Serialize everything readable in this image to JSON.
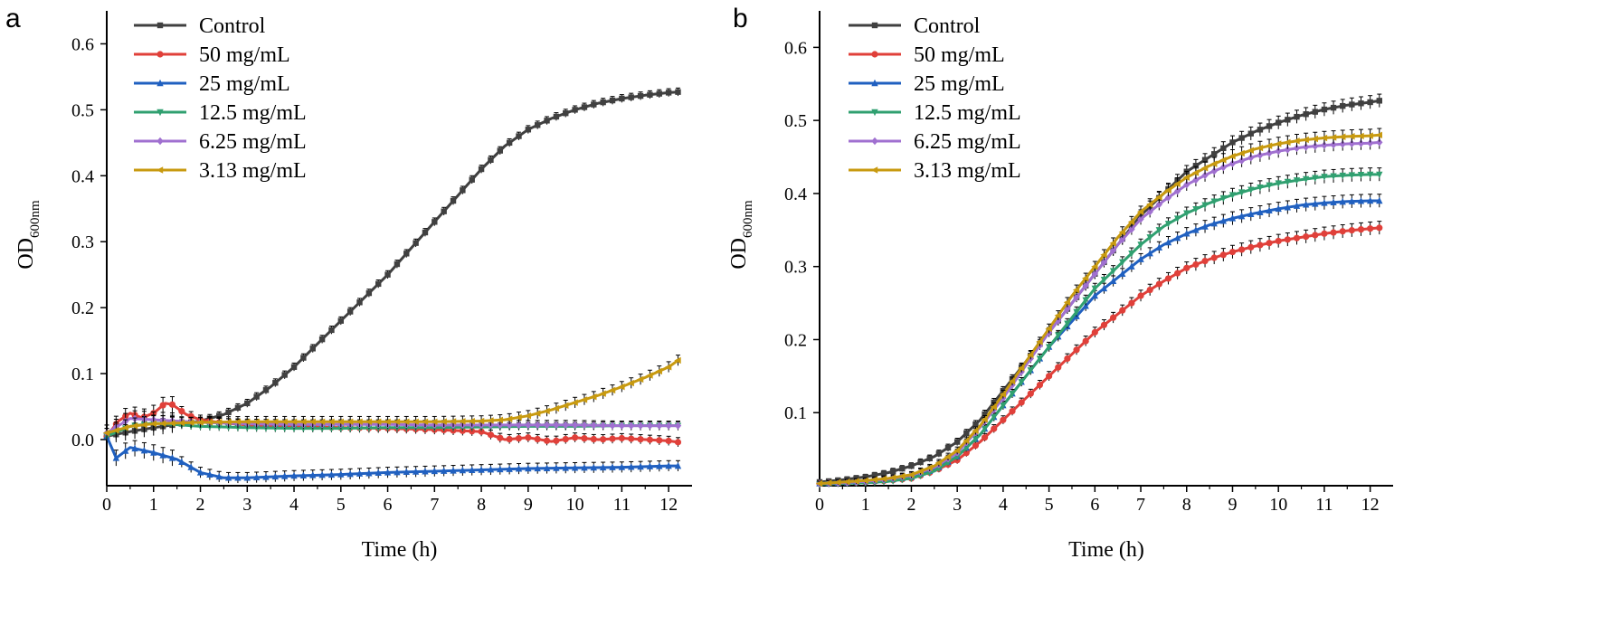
{
  "colors": {
    "Control": "#404040",
    "50 mg/mL": "#e0403a",
    "25 mg/mL": "#2060c0",
    "12.5 mg/mL": "#30a070",
    "6.25 mg/mL": "#a070d0",
    "3.13 mg/mL": "#c89a10"
  },
  "markers": {
    "Control": "square",
    "50 mg/mL": "circle",
    "25 mg/mL": "triangle-up",
    "12.5 mg/mL": "triangle-down",
    "6.25 mg/mL": "diamond",
    "3.13 mg/mL": "triangle-left"
  },
  "chart_data": [
    {
      "panel_label": "a",
      "type": "line",
      "xlabel": "Time (h)",
      "ylabel": "OD",
      "ylabel_sub": "600nm",
      "xlim": [
        0,
        12.5
      ],
      "ylim": [
        -0.07,
        0.65
      ],
      "xticks": [
        "0",
        "1",
        "2",
        "3",
        "4",
        "5",
        "6",
        "7",
        "8",
        "9",
        "10",
        "11",
        "12"
      ],
      "yticks": [
        "0.0",
        "0.1",
        "0.2",
        "0.3",
        "0.4",
        "0.5",
        "0.6"
      ],
      "legend": "top-left",
      "grid": false,
      "error_bars": true,
      "series": [
        {
          "name": "Control",
          "x": [
            0,
            0.5,
            1,
            1.5,
            2,
            2.5,
            3,
            3.5,
            4,
            4.5,
            5,
            5.5,
            6,
            6.5,
            7,
            7.5,
            8,
            8.5,
            9,
            9.5,
            10,
            10.5,
            11,
            11.5,
            12,
            12.2
          ],
          "y": [
            0.005,
            0.012,
            0.018,
            0.023,
            0.028,
            0.038,
            0.055,
            0.08,
            0.11,
            0.145,
            0.18,
            0.215,
            0.25,
            0.29,
            0.33,
            0.37,
            0.41,
            0.445,
            0.47,
            0.487,
            0.5,
            0.51,
            0.517,
            0.522,
            0.526,
            0.527
          ]
        },
        {
          "name": "50 mg/mL",
          "x": [
            0,
            0.25,
            0.5,
            0.75,
            1,
            1.25,
            1.4,
            1.7,
            2,
            2.5,
            3,
            4,
            5,
            6,
            7,
            8,
            8.5,
            9,
            9.5,
            10,
            10.5,
            11,
            11.5,
            12,
            12.2
          ],
          "y": [
            0.005,
            0.028,
            0.04,
            0.033,
            0.04,
            0.055,
            0.053,
            0.038,
            0.03,
            0.025,
            0.022,
            0.02,
            0.018,
            0.017,
            0.015,
            0.012,
            0.0,
            0.003,
            -0.003,
            0.003,
            0.0,
            0.002,
            0.0,
            -0.002,
            -0.004
          ]
        },
        {
          "name": "25 mg/mL",
          "x": [
            0,
            0.2,
            0.5,
            1,
            1.5,
            2,
            2.5,
            3,
            4,
            5,
            6,
            7,
            8,
            9,
            10,
            11,
            12,
            12.2
          ],
          "y": [
            0.005,
            -0.028,
            -0.012,
            -0.02,
            -0.03,
            -0.05,
            -0.058,
            -0.058,
            -0.055,
            -0.053,
            -0.05,
            -0.048,
            -0.046,
            -0.044,
            -0.043,
            -0.042,
            -0.04,
            -0.04
          ]
        },
        {
          "name": "12.5 mg/mL",
          "x": [
            0,
            0.5,
            1,
            2,
            3,
            4,
            5,
            6,
            7,
            8,
            9,
            10,
            11,
            12,
            12.2
          ],
          "y": [
            0.005,
            0.02,
            0.025,
            0.02,
            0.018,
            0.017,
            0.017,
            0.018,
            0.018,
            0.019,
            0.02,
            0.02,
            0.021,
            0.021,
            0.021
          ]
        },
        {
          "name": "6.25 mg/mL",
          "x": [
            0,
            0.5,
            1,
            2,
            3,
            4,
            5,
            6,
            7,
            8,
            9,
            10,
            11,
            12,
            12.2
          ],
          "y": [
            0.01,
            0.032,
            0.03,
            0.026,
            0.024,
            0.023,
            0.023,
            0.023,
            0.022,
            0.022,
            0.022,
            0.022,
            0.021,
            0.021,
            0.021
          ]
        },
        {
          "name": "3.13 mg/mL",
          "x": [
            0,
            0.5,
            1,
            2,
            3,
            4,
            5,
            6,
            7,
            8,
            8.5,
            9,
            9.5,
            10,
            10.5,
            11,
            11.5,
            12,
            12.2
          ],
          "y": [
            0.01,
            0.02,
            0.024,
            0.026,
            0.027,
            0.027,
            0.027,
            0.027,
            0.027,
            0.028,
            0.03,
            0.036,
            0.045,
            0.056,
            0.067,
            0.08,
            0.094,
            0.11,
            0.12
          ]
        }
      ]
    },
    {
      "panel_label": "b",
      "type": "line",
      "xlabel": "Time (h)",
      "ylabel": "OD",
      "ylabel_sub": "600nm",
      "xlim": [
        0,
        12.5
      ],
      "ylim": [
        0,
        0.65
      ],
      "xticks": [
        "0",
        "1",
        "2",
        "3",
        "4",
        "5",
        "6",
        "7",
        "8",
        "9",
        "10",
        "11",
        "12"
      ],
      "yticks": [
        "0.1",
        "0.2",
        "0.3",
        "0.4",
        "0.5",
        "0.6"
      ],
      "legend": "top-left",
      "grid": false,
      "error_bars": true,
      "series": [
        {
          "name": "Control",
          "x": [
            0,
            0.5,
            1,
            1.5,
            2,
            2.5,
            3,
            3.5,
            4,
            4.5,
            5,
            5.5,
            6,
            6.5,
            7,
            7.5,
            8,
            8.5,
            9,
            9.5,
            10,
            10.5,
            11,
            11.5,
            12,
            12.2
          ],
          "y": [
            0.005,
            0.008,
            0.012,
            0.018,
            0.027,
            0.04,
            0.06,
            0.09,
            0.13,
            0.17,
            0.21,
            0.25,
            0.29,
            0.33,
            0.37,
            0.4,
            0.43,
            0.45,
            0.47,
            0.485,
            0.497,
            0.507,
            0.515,
            0.521,
            0.525,
            0.527
          ]
        },
        {
          "name": "50 mg/mL",
          "x": [
            0,
            0.5,
            1,
            1.5,
            2,
            2.5,
            3,
            3.5,
            4,
            4.5,
            5,
            5.5,
            6,
            6.5,
            7,
            7.5,
            8,
            8.5,
            9,
            9.5,
            10,
            10.5,
            11,
            11.5,
            12,
            12.2
          ],
          "y": [
            0.003,
            0.004,
            0.005,
            0.007,
            0.01,
            0.02,
            0.035,
            0.06,
            0.09,
            0.12,
            0.15,
            0.18,
            0.21,
            0.235,
            0.26,
            0.28,
            0.298,
            0.31,
            0.32,
            0.328,
            0.335,
            0.34,
            0.345,
            0.349,
            0.352,
            0.353
          ]
        },
        {
          "name": "25 mg/mL",
          "x": [
            0,
            0.5,
            1,
            1.5,
            2,
            2.5,
            3,
            3.5,
            4,
            4.5,
            5,
            5.5,
            6,
            6.5,
            7,
            7.5,
            8,
            8.5,
            9,
            9.5,
            10,
            10.5,
            11,
            11.5,
            12,
            12.2
          ],
          "y": [
            0.003,
            0.004,
            0.006,
            0.008,
            0.012,
            0.022,
            0.04,
            0.07,
            0.11,
            0.15,
            0.19,
            0.225,
            0.26,
            0.285,
            0.31,
            0.33,
            0.345,
            0.357,
            0.366,
            0.373,
            0.379,
            0.384,
            0.387,
            0.389,
            0.39,
            0.39
          ]
        },
        {
          "name": "12.5 mg/mL",
          "x": [
            0,
            0.5,
            1,
            1.5,
            2,
            2.5,
            3,
            3.5,
            4,
            4.5,
            5,
            5.5,
            6,
            6.5,
            7,
            7.5,
            8,
            8.5,
            9,
            9.5,
            10,
            10.5,
            11,
            11.5,
            12,
            12.2
          ],
          "y": [
            0.002,
            0.003,
            0.004,
            0.006,
            0.01,
            0.02,
            0.04,
            0.07,
            0.11,
            0.15,
            0.19,
            0.23,
            0.27,
            0.3,
            0.33,
            0.355,
            0.373,
            0.387,
            0.398,
            0.407,
            0.414,
            0.419,
            0.423,
            0.425,
            0.426,
            0.426
          ]
        },
        {
          "name": "6.25 mg/mL",
          "x": [
            0,
            0.5,
            1,
            1.5,
            2,
            2.5,
            3,
            3.5,
            4,
            4.5,
            5,
            5.5,
            6,
            6.5,
            7,
            7.5,
            8,
            8.5,
            9,
            9.5,
            10,
            10.5,
            11,
            11.5,
            12,
            12.2
          ],
          "y": [
            0.003,
            0.004,
            0.006,
            0.009,
            0.014,
            0.025,
            0.045,
            0.08,
            0.12,
            0.165,
            0.21,
            0.25,
            0.29,
            0.33,
            0.365,
            0.39,
            0.412,
            0.428,
            0.441,
            0.451,
            0.458,
            0.463,
            0.466,
            0.468,
            0.469,
            0.47
          ]
        },
        {
          "name": "3.13 mg/mL",
          "x": [
            0,
            0.5,
            1,
            1.5,
            2,
            2.5,
            3,
            3.5,
            4,
            4.5,
            5,
            5.5,
            6,
            6.5,
            7,
            7.5,
            8,
            8.5,
            9,
            9.5,
            10,
            10.5,
            11,
            11.5,
            12,
            12.2
          ],
          "y": [
            0.003,
            0.005,
            0.007,
            0.01,
            0.015,
            0.027,
            0.048,
            0.082,
            0.125,
            0.17,
            0.215,
            0.26,
            0.3,
            0.34,
            0.375,
            0.4,
            0.422,
            0.438,
            0.451,
            0.461,
            0.468,
            0.473,
            0.476,
            0.478,
            0.479,
            0.48
          ]
        }
      ]
    }
  ]
}
